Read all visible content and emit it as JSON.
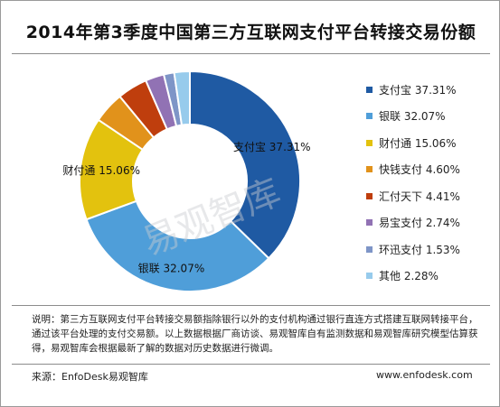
{
  "chart_data": {
    "type": "pie",
    "title": "2014年第3季度中国第三方互联网支付平台转接交易份额",
    "unit": "%",
    "legend_position": "right",
    "slices": [
      {
        "name": "支付宝",
        "value": 37.31,
        "label": "支付宝 37.31%",
        "color": "#1f5aa3"
      },
      {
        "name": "银联",
        "value": 32.07,
        "label": "银联 32.07%",
        "color": "#4f9ed9"
      },
      {
        "name": "财付通",
        "value": 15.06,
        "label": "财付通 15.06%",
        "color": "#e3c20e"
      },
      {
        "name": "快钱支付",
        "value": 4.6,
        "label": "快钱支付 4.60%",
        "color": "#e1921b"
      },
      {
        "name": "汇付天下",
        "value": 4.41,
        "label": "汇付天下 4.41%",
        "color": "#bf3e0d"
      },
      {
        "name": "易宝支付",
        "value": 2.74,
        "label": "易宝支付 2.74%",
        "color": "#9172b4"
      },
      {
        "name": "环迅支付",
        "value": 1.53,
        "label": "环迅支付 1.53%",
        "color": "#7e95c7"
      },
      {
        "name": "其他",
        "value": 2.28,
        "label": "其他 2.28%",
        "color": "#97cbec"
      }
    ],
    "data_labels": [
      {
        "slice": "支付宝",
        "text": "支付宝 37.31%"
      },
      {
        "slice": "银联",
        "text": "银联 32.07%"
      },
      {
        "slice": "财付通",
        "text": "财付通 15.06%"
      }
    ]
  },
  "watermark": "易观智库",
  "note": "说明：第三方互联网支付平台转接交易额指除银行以外的支付机构通过银行直连方式搭建互联网转接平台，通过该平台处理的支付交易额。以上数据根据厂商访谈、易观智库自有监测数据和易观智库研究模型估算获得，易观智库会根据最新了解的数据对历史数据进行微调。",
  "source": "来源：EnfoDesk易观智库",
  "website": "www.enfodesk.com"
}
